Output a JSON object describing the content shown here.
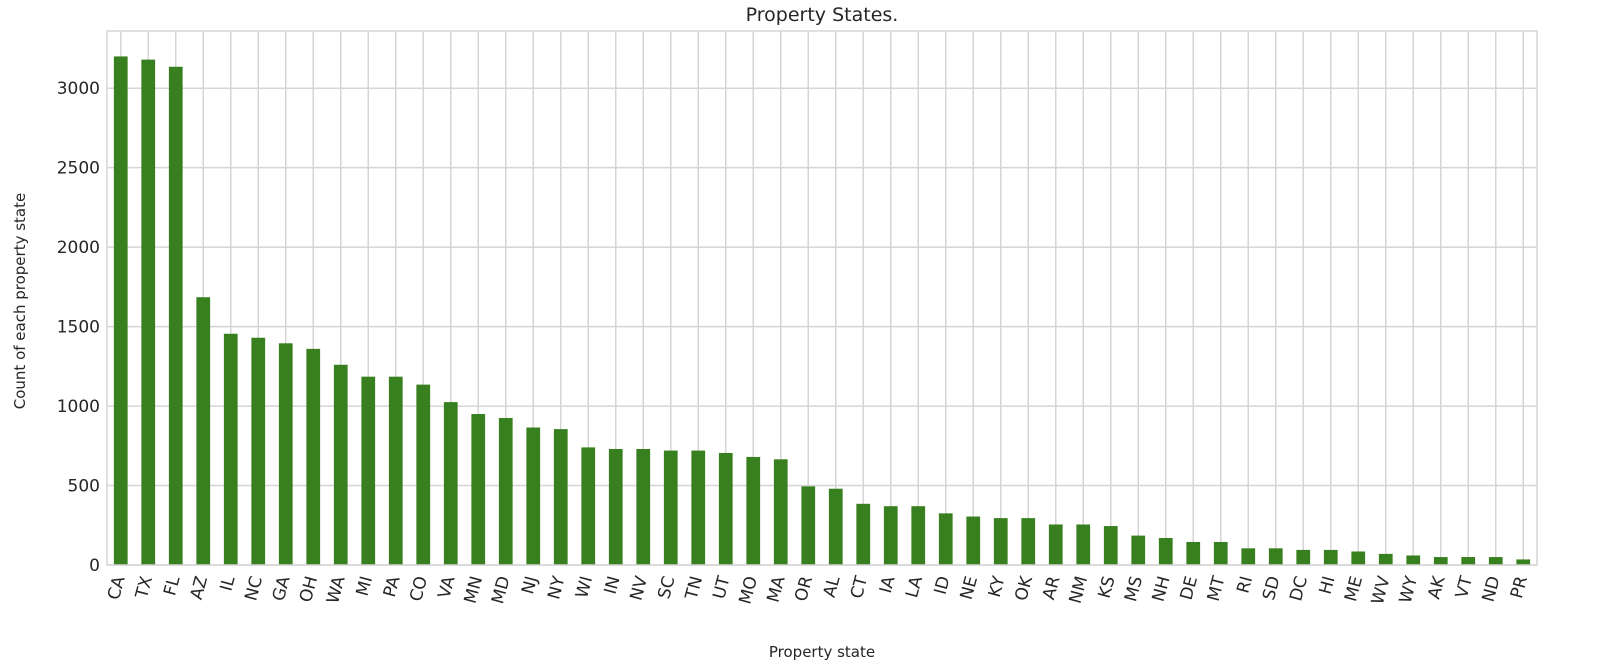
{
  "chart_data": {
    "type": "bar",
    "title": "Property States.",
    "xlabel": "Property state",
    "ylabel": "Count of each property state",
    "categories": [
      "CA",
      "TX",
      "FL",
      "AZ",
      "IL",
      "NC",
      "GA",
      "OH",
      "WA",
      "MI",
      "PA",
      "CO",
      "VA",
      "MN",
      "MD",
      "NJ",
      "NY",
      "WI",
      "IN",
      "NV",
      "SC",
      "TN",
      "UT",
      "MO",
      "MA",
      "OR",
      "AL",
      "CT",
      "IA",
      "LA",
      "ID",
      "NE",
      "KY",
      "OK",
      "AR",
      "NM",
      "KS",
      "MS",
      "NH",
      "DE",
      "MT",
      "RI",
      "SD",
      "DC",
      "HI",
      "ME",
      "WV",
      "WY",
      "AK",
      "VT",
      "ND",
      "PR"
    ],
    "values": [
      3200,
      3180,
      3135,
      1685,
      1455,
      1430,
      1395,
      1360,
      1260,
      1185,
      1185,
      1135,
      1025,
      950,
      925,
      865,
      855,
      740,
      730,
      730,
      720,
      720,
      705,
      680,
      665,
      495,
      480,
      385,
      370,
      370,
      325,
      305,
      295,
      295,
      255,
      255,
      245,
      185,
      170,
      145,
      145,
      105,
      105,
      95,
      95,
      85,
      70,
      60,
      50,
      50,
      50,
      35
    ],
    "ylim": [
      0,
      3360
    ],
    "yticks": [
      0,
      500,
      1000,
      1500,
      2000,
      2500,
      3000
    ],
    "bar_color": "#38801f",
    "grid": true,
    "legend": "none"
  }
}
